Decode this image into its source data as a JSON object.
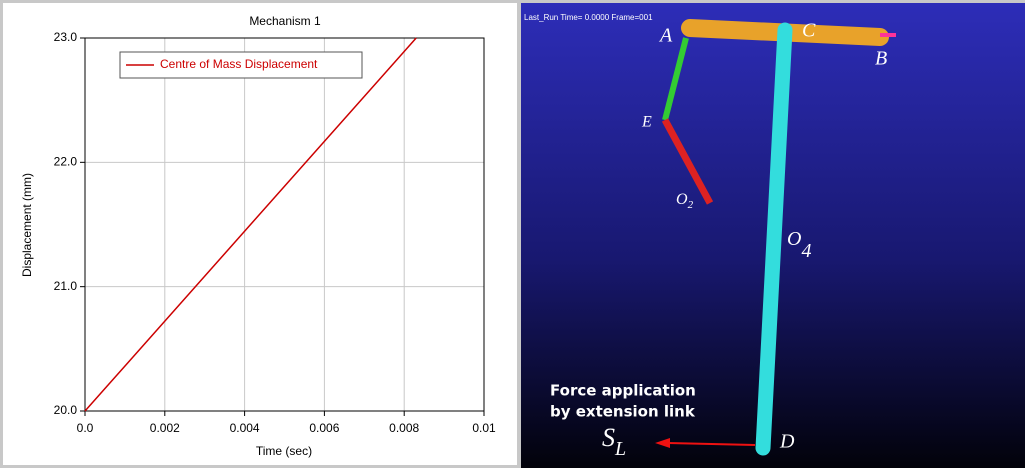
{
  "chart_data": {
    "type": "line",
    "title": "Mechanism 1",
    "xlabel": "Time (sec)",
    "ylabel": "Displacement (mm)",
    "x": [
      0,
      0.0083
    ],
    "series": [
      {
        "name": "Centre of Mass Displacement",
        "color": "#cc0000",
        "values": [
          20,
          23
        ]
      }
    ],
    "xlim": [
      0,
      0.01
    ],
    "xticks": [
      {
        "value": 0,
        "label": "0.0"
      },
      0.002,
      0.004,
      0.006,
      0.008,
      0.01
    ],
    "ylim": [
      20,
      23
    ],
    "yticks": [
      {
        "value": 20,
        "label": "20.0"
      },
      {
        "value": 21,
        "label": "21.0"
      },
      {
        "value": 22,
        "label": "22.0"
      },
      {
        "value": 23,
        "label": "23.0"
      }
    ],
    "grid": true,
    "legend": "upper left"
  },
  "scene": {
    "header": "Last_Run  Time= 0.0000  Frame=001",
    "points": {
      "A": "A",
      "B": "B",
      "C": "C",
      "D": "D",
      "E": "E"
    },
    "o2": {
      "main": "O",
      "sub": "2"
    },
    "o4": {
      "main": "O",
      "sub": "4"
    },
    "sl": {
      "main": "S",
      "sub": "L"
    },
    "annotation": [
      "Force application",
      "by extension link"
    ]
  }
}
